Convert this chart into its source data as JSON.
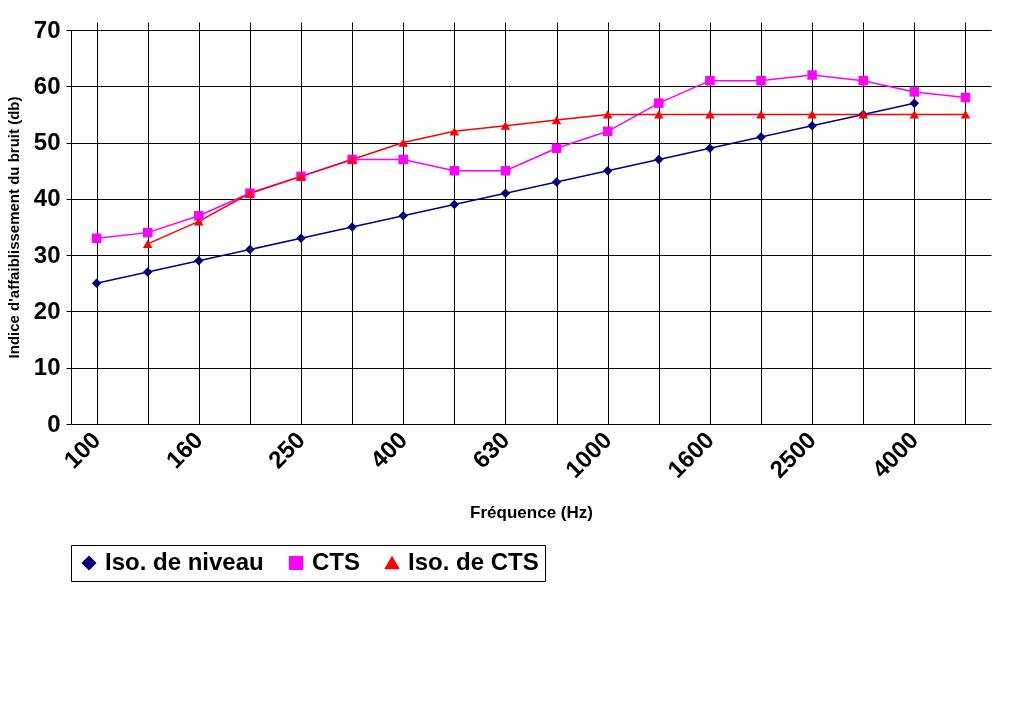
{
  "chart_data": {
    "type": "line",
    "xlabel": "Fréquence (Hz)",
    "ylabel": "Indice d'affaiblissement du bruit (db)",
    "categories": [
      "100",
      null,
      "160",
      null,
      "250",
      null,
      "400",
      null,
      "630",
      null,
      "1000",
      null,
      "1600",
      null,
      "2500",
      null,
      "4000",
      null
    ],
    "series": [
      {
        "name": "Iso. de niveau",
        "color": "#000080",
        "marker": "diamond",
        "values": [
          25,
          27,
          29,
          31,
          33,
          35,
          37,
          39,
          41,
          43,
          45,
          47,
          49,
          51,
          53,
          55,
          57,
          null
        ]
      },
      {
        "name": "CTS",
        "color": "#ff00ff",
        "marker": "square",
        "values": [
          33,
          34,
          37,
          41,
          44,
          47,
          47,
          45,
          45,
          49,
          52,
          57,
          61,
          61,
          62,
          61,
          59,
          58
        ]
      },
      {
        "name": "Iso. de CTS",
        "color": "#ff0000",
        "marker": "triangle",
        "values": [
          null,
          32,
          36,
          41,
          44,
          47,
          50,
          52,
          53,
          54,
          55,
          55,
          55,
          55,
          55,
          55,
          55,
          55
        ]
      }
    ],
    "ylim": [
      0,
      70
    ],
    "yticks": [
      0,
      10,
      20,
      30,
      40,
      50,
      60,
      70
    ],
    "grid": true,
    "legend": "bottom"
  }
}
